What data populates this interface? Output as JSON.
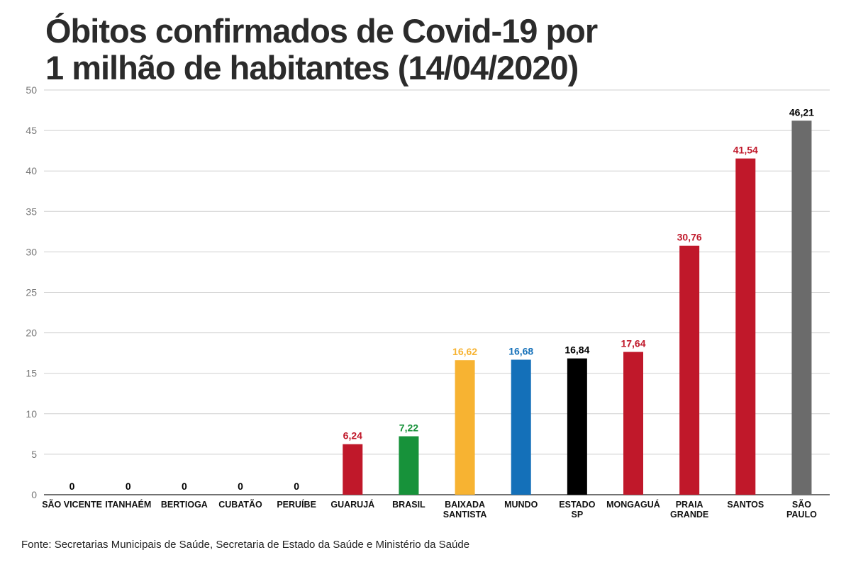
{
  "title_lines": [
    "Óbitos confirmados de Covid-19 por",
    "1 milhão de habitantes (14/04/2020)"
  ],
  "source": "Fonte: Secretarias Municipais de Saúde, Secretaria de Estado da Saúde e Ministério da Saúde",
  "chart_data": {
    "type": "bar",
    "title": "Óbitos confirmados de Covid-19 por 1 milhão de habitantes (14/04/2020)",
    "categories": [
      [
        "SÃO VICENTE"
      ],
      [
        "ITANHAÉM"
      ],
      [
        "BERTIOGA"
      ],
      [
        "CUBATÃO"
      ],
      [
        "PERUÍBE"
      ],
      [
        "GUARUJÁ"
      ],
      [
        "BRASIL"
      ],
      [
        "BAIXADA",
        "SANTISTA"
      ],
      [
        "MUNDO"
      ],
      [
        "ESTADO",
        "SP"
      ],
      [
        "MONGAGUÁ"
      ],
      [
        "PRAIA",
        "GRANDE"
      ],
      [
        "SANTOS"
      ],
      [
        "SÃO",
        "PAULO"
      ]
    ],
    "values": [
      0,
      0,
      0,
      0,
      0,
      6.24,
      7.22,
      16.62,
      16.68,
      16.84,
      17.64,
      30.76,
      41.54,
      46.21
    ],
    "value_labels": [
      "0",
      "0",
      "0",
      "0",
      "0",
      "6,24",
      "7,22",
      "16,62",
      "16,68",
      "16,84",
      "17,64",
      "30,76",
      "41,54",
      "46,21"
    ],
    "bar_colors": [
      "#c0182a",
      "#c0182a",
      "#c0182a",
      "#c0182a",
      "#c0182a",
      "#c0182a",
      "#17923a",
      "#f7b332",
      "#1470b9",
      "#000000",
      "#c0182a",
      "#c0182a",
      "#c0182a",
      "#6b6b6b"
    ],
    "label_colors": [
      "#000000",
      "#000000",
      "#000000",
      "#000000",
      "#000000",
      "#c0182a",
      "#17923a",
      "#f7b332",
      "#1470b9",
      "#000000",
      "#c0182a",
      "#c0182a",
      "#c0182a",
      "#000000"
    ],
    "yticks": [
      "0",
      "5",
      "10",
      "15",
      "20",
      "25",
      "30",
      "35",
      "40",
      "45",
      "50"
    ],
    "ylim": [
      0,
      50
    ],
    "grid": true,
    "legend": "none"
  }
}
